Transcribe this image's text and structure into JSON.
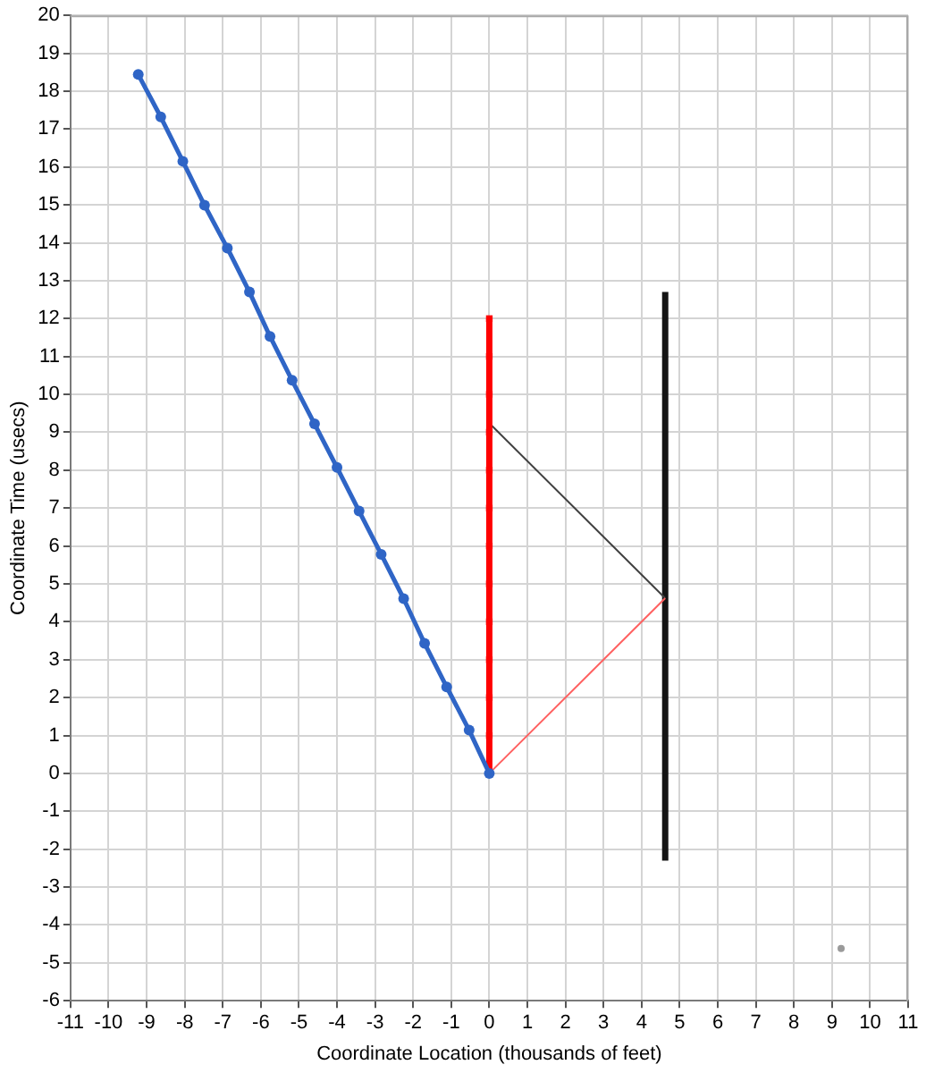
{
  "chart_data": {
    "type": "line",
    "xlabel": "Coordinate Location (thousands of feet)",
    "ylabel": "Coordinate Time (usecs)",
    "xlim": [
      -11,
      11
    ],
    "ylim": [
      -6,
      20
    ],
    "xticks": [
      -11,
      -10,
      -9,
      -8,
      -7,
      -6,
      -5,
      -4,
      -3,
      -2,
      -1,
      0,
      1,
      2,
      3,
      4,
      5,
      6,
      7,
      8,
      9,
      10,
      11
    ],
    "yticks": [
      -6,
      -5,
      -4,
      -3,
      -2,
      -1,
      0,
      1,
      2,
      3,
      4,
      5,
      6,
      7,
      8,
      9,
      10,
      11,
      12,
      13,
      14,
      15,
      16,
      17,
      18,
      19,
      20
    ],
    "grid": true,
    "series": [
      {
        "color": "#2f65c6",
        "marker": "circle",
        "x": [
          0,
          -0.53,
          -1.12,
          -1.7,
          -2.25,
          -2.84,
          -3.42,
          -4.0,
          -4.59,
          -5.18,
          -5.76,
          -6.3,
          -6.88,
          -7.48,
          -8.05,
          -8.63,
          -9.22
        ],
        "values": [
          0,
          1.14,
          2.28,
          3.43,
          4.61,
          5.78,
          6.92,
          8.07,
          9.22,
          10.37,
          11.53,
          12.7,
          13.86,
          14.99,
          16.15,
          17.32,
          18.44
        ]
      },
      {
        "color": "#ff0000",
        "marker": "square",
        "x": [
          0,
          0,
          0,
          0,
          0,
          0,
          0,
          0,
          0,
          0,
          0,
          0,
          0
        ],
        "values": [
          0,
          1,
          2,
          3,
          4,
          5,
          6,
          7,
          8,
          9,
          10,
          11,
          12
        ]
      },
      {
        "color": "#ff6060",
        "marker": "none",
        "x": [
          0,
          4.62
        ],
        "values": [
          0,
          4.62
        ]
      },
      {
        "color": "#404040",
        "marker": "none",
        "x": [
          0,
          4.62
        ],
        "values": [
          9.24,
          4.62
        ]
      },
      {
        "color": "#141414",
        "marker": "none",
        "x": [
          4.62,
          4.62
        ],
        "values": [
          -2.3,
          12.7
        ]
      },
      {
        "type": "scatter",
        "color": "#9a9a9a",
        "marker": "circle",
        "x": [
          9.24
        ],
        "values": [
          -4.62
        ]
      }
    ]
  }
}
